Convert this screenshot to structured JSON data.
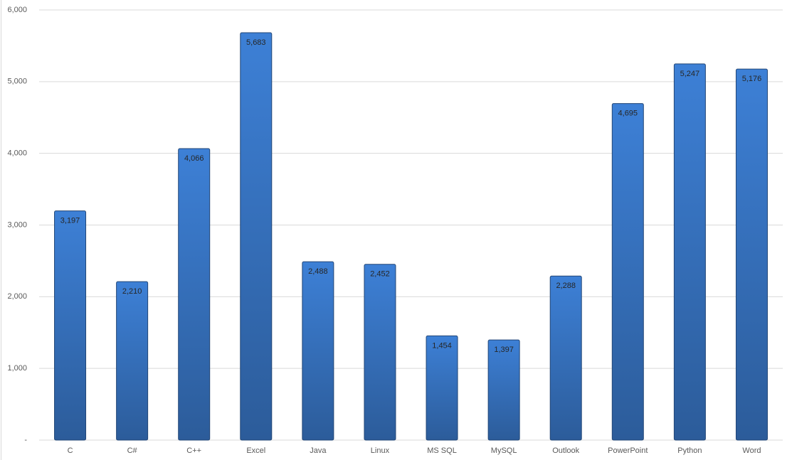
{
  "chart_data": {
    "type": "bar",
    "categories": [
      "C",
      "C#",
      "C++",
      "Excel",
      "Java",
      "Linux",
      "MS SQL",
      "MySQL",
      "Outlook",
      "PowerPoint",
      "Python",
      "Word"
    ],
    "values": [
      3197,
      2210,
      4066,
      5683,
      2488,
      2452,
      1454,
      1397,
      2288,
      4695,
      5247,
      5176
    ],
    "value_labels": [
      "3,197",
      "2,210",
      "4,066",
      "5,683",
      "2,488",
      "2,452",
      "1,454",
      "1,397",
      "2,288",
      "4,695",
      "5,247",
      "5,176"
    ],
    "color": "#3d80d6",
    "ylim": [
      0,
      6000
    ],
    "yticks": [
      {
        "value": 0,
        "label": "-"
      },
      {
        "value": 1000,
        "label": "1,000"
      },
      {
        "value": 2000,
        "label": "2,000"
      },
      {
        "value": 3000,
        "label": "3,000"
      },
      {
        "value": 4000,
        "label": "4,000"
      },
      {
        "value": 5000,
        "label": "5,000"
      },
      {
        "value": 6000,
        "label": "6,000"
      }
    ],
    "grid": true
  }
}
